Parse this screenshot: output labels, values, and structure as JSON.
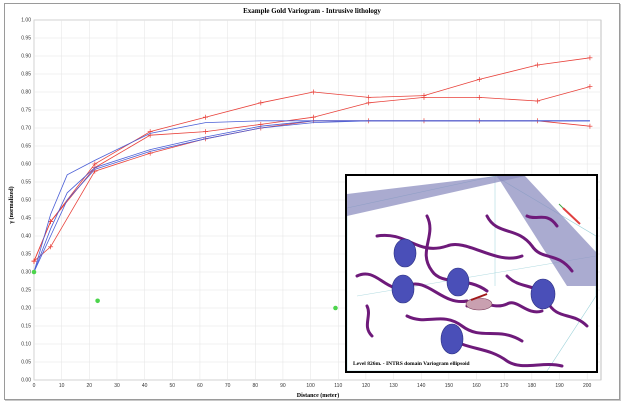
{
  "chart_data": {
    "type": "line",
    "title": "Example Gold Variogram - Intrusive lithology",
    "xlabel": "Distance (meter)",
    "ylabel": "γ (normalized)",
    "xlim": [
      0,
      205
    ],
    "ylim": [
      0,
      1.0
    ],
    "x_ticks": [
      0,
      10,
      20,
      30,
      40,
      50,
      60,
      70,
      80,
      90,
      100,
      110,
      120,
      130,
      140,
      150,
      160,
      170,
      180,
      190,
      200
    ],
    "y_ticks": [
      "0.00",
      "0.05",
      "0.10",
      "0.15",
      "0.20",
      "0.25",
      "0.30",
      "0.35",
      "0.40",
      "0.45",
      "0.50",
      "0.55",
      "0.60",
      "0.65",
      "0.70",
      "0.75",
      "0.80",
      "0.85",
      "0.90",
      "0.95",
      "1.00"
    ],
    "grid": true,
    "series": [
      {
        "color": "#e8413a",
        "marker": "plus",
        "x": [
          0,
          6,
          22,
          42,
          62,
          82,
          101,
          121,
          141,
          161,
          182,
          201
        ],
        "y": [
          0.33,
          0.44,
          0.6,
          0.69,
          0.73,
          0.77,
          0.8,
          0.785,
          0.79,
          0.835,
          0.875,
          0.895
        ]
      },
      {
        "color": "#e8413a",
        "marker": "plus",
        "x": [
          0,
          6,
          22,
          42,
          62,
          82,
          101,
          121,
          141,
          161,
          182,
          201
        ],
        "y": [
          0.33,
          0.44,
          0.59,
          0.68,
          0.69,
          0.71,
          0.73,
          0.77,
          0.785,
          0.785,
          0.775,
          0.815
        ]
      },
      {
        "color": "#e8413a",
        "marker": "plus",
        "x": [
          0,
          6,
          22,
          42,
          62,
          82,
          101,
          121,
          141,
          161,
          182,
          201
        ],
        "y": [
          0.33,
          0.37,
          0.58,
          0.63,
          0.67,
          0.7,
          0.72,
          0.72,
          0.72,
          0.72,
          0.72,
          0.705
        ]
      },
      {
        "color": "#4b5fd6",
        "marker": "none",
        "x": [
          0,
          6,
          12,
          22,
          42,
          62,
          82,
          101,
          121,
          141,
          161,
          182,
          201
        ],
        "y": [
          0.3,
          0.46,
          0.57,
          0.61,
          0.685,
          0.715,
          0.72,
          0.72,
          0.72,
          0.72,
          0.72,
          0.72,
          0.72
        ]
      },
      {
        "color": "#4b5fd6",
        "marker": "none",
        "x": [
          0,
          6,
          12,
          22,
          42,
          62,
          82,
          101,
          121,
          141,
          161,
          182,
          201
        ],
        "y": [
          0.3,
          0.42,
          0.52,
          0.59,
          0.64,
          0.675,
          0.705,
          0.72,
          0.72,
          0.72,
          0.72,
          0.72,
          0.72
        ]
      },
      {
        "color": "#4b5fd6",
        "marker": "none",
        "x": [
          0,
          6,
          12,
          22,
          42,
          62,
          82,
          101,
          121,
          141,
          161,
          182,
          201
        ],
        "y": [
          0.3,
          0.4,
          0.5,
          0.585,
          0.635,
          0.67,
          0.7,
          0.715,
          0.72,
          0.72,
          0.72,
          0.72,
          0.72
        ]
      }
    ],
    "points": [
      {
        "color": "#4cd44c",
        "x": 0,
        "y": 0.3
      },
      {
        "color": "#4cd44c",
        "x": 23,
        "y": 0.22
      },
      {
        "color": "#4cd44c",
        "x": 109,
        "y": 0.2
      }
    ]
  },
  "inset": {
    "caption": "Level 826m. - INTRS domain Variogram ellipsoid"
  }
}
